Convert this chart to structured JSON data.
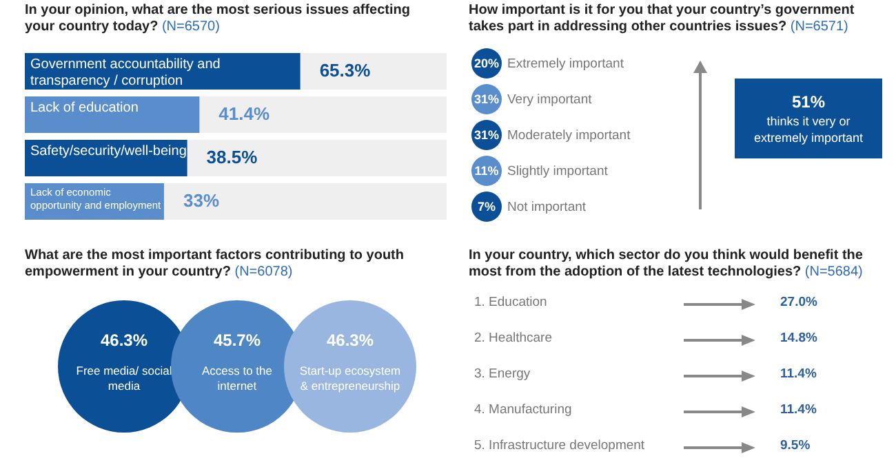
{
  "chart_data": [
    {
      "type": "bar",
      "orientation": "horizontal",
      "title": "In your opinion, what are the most serious issues affecting your country today?",
      "subtitle": "(N=6570)",
      "categories": [
        "Government accountability and transparency / corruption",
        "Lack of education",
        "Safety/security/well-being",
        "Lack of economic opportunity and employment"
      ],
      "values": [
        65.3,
        41.4,
        38.5,
        33
      ],
      "colors": [
        "#0b4f96",
        "#5a8dcc",
        "#0b4f96",
        "#5a8dcc"
      ],
      "value_labels": [
        "65.3%",
        "41.4%",
        "38.5%",
        "33%"
      ],
      "xlim": [
        0,
        100
      ],
      "tick_labels": false
    },
    {
      "type": "other",
      "title": "How important is it for you that your country’s government takes part in addressing other countries issues?",
      "subtitle": "(N=6571)",
      "categories": [
        "Extremely important",
        "Very important",
        "Moderately important",
        "Slightly important",
        "Not important"
      ],
      "values": [
        20,
        31,
        31,
        11,
        7
      ],
      "colors": [
        "#0b4f96",
        "#5a8dcc",
        "#0b4f96",
        "#5a8dcc",
        "#0b4f96"
      ],
      "value_labels": [
        "20%",
        "31%",
        "31%",
        "11%",
        "7%"
      ],
      "annotations": [
        "51%",
        "thinks it very or extremely important"
      ]
    },
    {
      "type": "other",
      "title": "What are the most important factors contributing to youth empowerment in your country?",
      "subtitle": "(N=6078)",
      "categories": [
        "Free media/ social media",
        "Access to the internet",
        "Start-up ecosystem & entrepreneurship"
      ],
      "values": [
        46.3,
        45.7,
        46.3
      ],
      "colors": [
        "#0b4f96",
        "#4f86c6",
        "#98b6e0"
      ],
      "value_labels": [
        "46.3%",
        "45.7%",
        "46.3%"
      ]
    },
    {
      "type": "other",
      "title": "In your country, which sector do you think would benefit the most from the adoption of the latest technologies?",
      "subtitle": "(N=5684)",
      "categories": [
        "1. Education",
        "2. Healthcare",
        "3. Energy",
        "4. Manufacturing",
        "5. Infrastructure development"
      ],
      "values": [
        27.0,
        14.8,
        11.4,
        11.4,
        9.5
      ],
      "value_labels": [
        "27.0%",
        "14.8%",
        "11.4%",
        "11.4%",
        "9.5%"
      ]
    }
  ]
}
